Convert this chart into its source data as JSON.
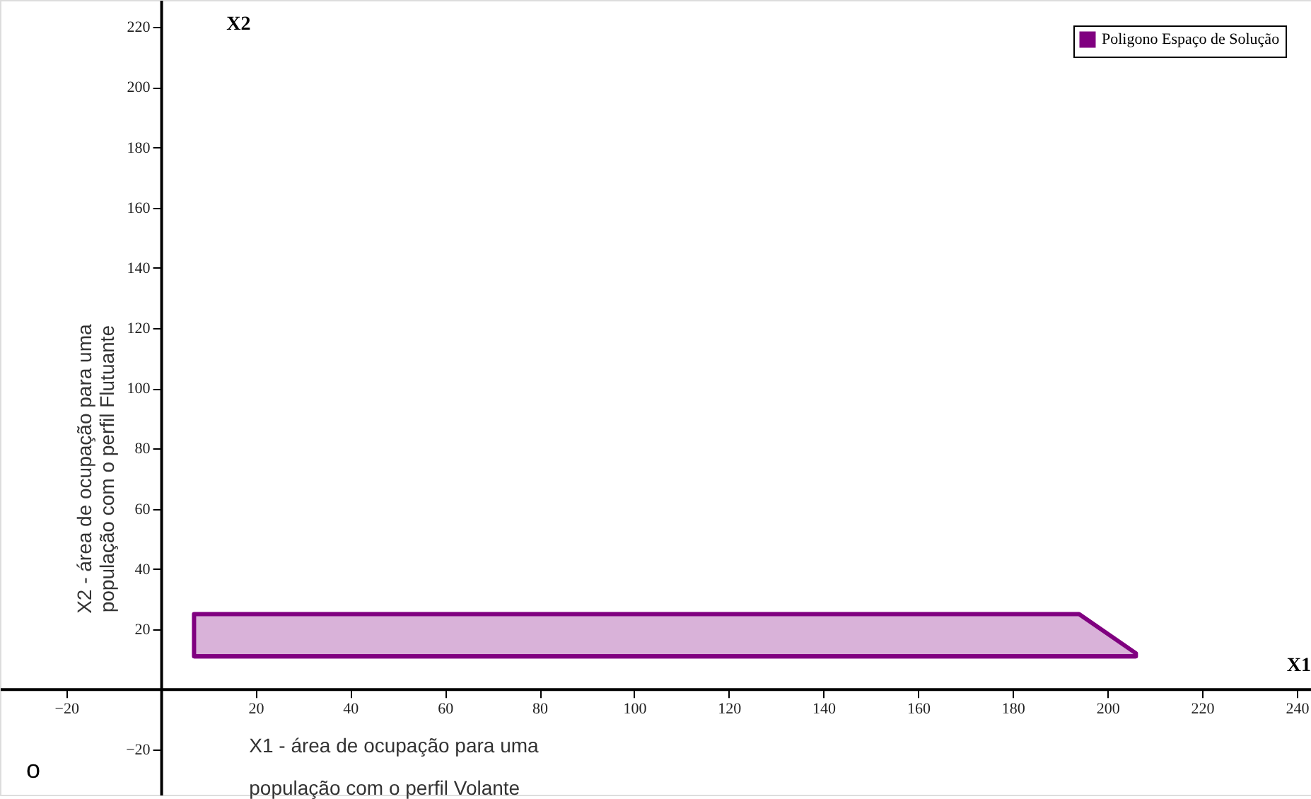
{
  "chart_data": {
    "type": "area",
    "xlabel": "X1 - área de ocupação para uma população com o perfil Volante",
    "ylabel": "X2 - área de ocupação para uma população com o perfil Flutuante",
    "series": [
      {
        "name": "Poligono Espaço de Solução",
        "color": "#800080",
        "x": [
          7,
          194,
          206
        ],
        "values": [
          25,
          25,
          12
        ]
      },
      {
        "type": "line",
        "color": "#800080",
        "x": [
          7,
          194,
          206
        ],
        "values": [
          11,
          11,
          11
        ]
      }
    ],
    "xlim": [
      -34,
      243
    ],
    "ylim": [
      -35,
      229
    ],
    "xticks": [
      -20,
      20,
      40,
      60,
      80,
      100,
      120,
      140,
      160,
      180,
      200,
      220,
      240
    ],
    "yticks": [
      -20,
      20,
      40,
      60,
      80,
      100,
      120,
      140,
      160,
      180,
      200,
      220
    ],
    "annotations": [
      "X2",
      "X1",
      "o"
    ],
    "grid": false,
    "legend": "top right"
  }
}
